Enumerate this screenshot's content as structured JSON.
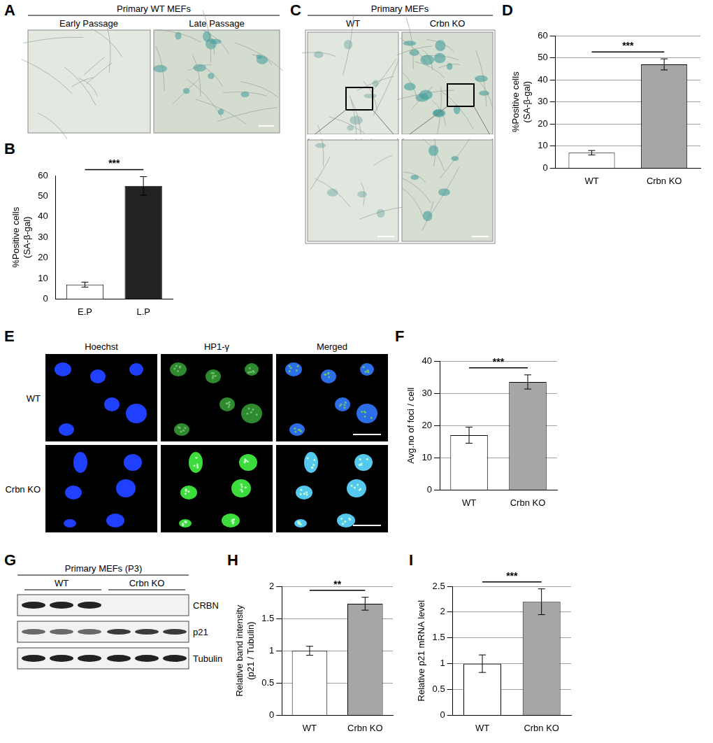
{
  "chart_data": [
    {
      "type": "bar",
      "panel": "B",
      "categories": [
        "E.P",
        "L.P"
      ],
      "values": [
        7,
        55
      ],
      "errors": [
        1.2,
        4.5
      ],
      "colors": [
        "#ffffff",
        "#222222"
      ],
      "ylabel": [
        "%Positive cells",
        "(SA-β-gal)"
      ],
      "ylim": [
        0,
        60
      ],
      "yticks": [
        0,
        10,
        20,
        30,
        40,
        50,
        60
      ],
      "grid": false,
      "annotations": [
        "***"
      ]
    },
    {
      "type": "bar",
      "panel": "D",
      "categories": [
        "WT",
        "Crbn KO"
      ],
      "values": [
        7,
        47
      ],
      "errors": [
        1.0,
        2.5
      ],
      "colors": [
        "#ffffff",
        "#a6a6a6"
      ],
      "ylabel": [
        "%Positive cells",
        "(SA-β-gal)"
      ],
      "ylim": [
        0,
        60
      ],
      "yticks": [
        0,
        10,
        20,
        30,
        40,
        50,
        60
      ],
      "grid": true,
      "annotations": [
        "***"
      ]
    },
    {
      "type": "bar",
      "panel": "F",
      "categories": [
        "WT",
        "Crbn KO"
      ],
      "values": [
        17,
        33.5
      ],
      "errors": [
        2.5,
        2.2
      ],
      "colors": [
        "#ffffff",
        "#a6a6a6"
      ],
      "ylabel": [
        "Avg.no of foci / cell"
      ],
      "ylim": [
        0,
        40
      ],
      "yticks": [
        0,
        10,
        20,
        30,
        40
      ],
      "grid": true,
      "annotations": [
        "***"
      ]
    },
    {
      "type": "bar",
      "panel": "H",
      "categories": [
        "WT",
        "Crbn KO"
      ],
      "values": [
        1.0,
        1.73
      ],
      "errors": [
        0.07,
        0.1
      ],
      "colors": [
        "#ffffff",
        "#a6a6a6"
      ],
      "ylabel": [
        "Relative band intensity",
        "(p21 / Tubulin)"
      ],
      "ylim": [
        0,
        2
      ],
      "yticks": [
        0,
        0.5,
        1,
        1.5,
        2
      ],
      "grid": true,
      "annotations": [
        "**"
      ]
    },
    {
      "type": "bar",
      "panel": "I",
      "categories": [
        "WT",
        "Crbn KO"
      ],
      "values": [
        1.0,
        2.2
      ],
      "errors": [
        0.17,
        0.25
      ],
      "colors": [
        "#ffffff",
        "#a6a6a6"
      ],
      "ylabel": [
        "Relative p21 mRNA level"
      ],
      "ylim": [
        0,
        2.5
      ],
      "yticks": [
        0,
        0.5,
        1,
        1.5,
        2,
        2.5
      ],
      "grid": true,
      "annotations": [
        "***"
      ]
    }
  ],
  "image_panels": [
    {
      "panel": "A",
      "title": "Primary WT MEFs",
      "columns": [
        "Early Passage",
        "Late Passage"
      ]
    },
    {
      "panel": "C",
      "title": "Primary MEFs",
      "columns": [
        "WT",
        "Crbn KO"
      ]
    },
    {
      "panel": "E",
      "columns": [
        "Hoechst",
        "HP1-γ",
        "Merged"
      ],
      "rows": [
        "WT",
        "Crbn KO"
      ]
    },
    {
      "panel": "G",
      "title": "Primary MEFs (P3)",
      "groups": [
        "WT",
        "Crbn KO"
      ],
      "bands": [
        "CRBN",
        "p21",
        "Tubulin"
      ]
    }
  ]
}
